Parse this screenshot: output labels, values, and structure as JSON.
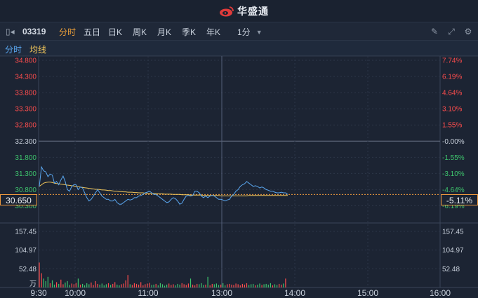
{
  "header": {
    "brand_name": "华盛通",
    "brand_icon": "weibo-style-logo-icon",
    "brand_color": "#e03b3b"
  },
  "toolbar": {
    "stock_code": "03319",
    "tabs": [
      {
        "label": "分时",
        "active": true
      },
      {
        "label": "五日",
        "active": false
      },
      {
        "label": "日K",
        "active": false
      },
      {
        "label": "周K",
        "active": false
      },
      {
        "label": "月K",
        "active": false
      },
      {
        "label": "季K",
        "active": false
      },
      {
        "label": "年K",
        "active": false
      }
    ],
    "interval": "1分",
    "icons": [
      "pencil-icon",
      "fullscreen-icon",
      "settings-icon"
    ]
  },
  "legend": {
    "line": "分时",
    "avg": "均线",
    "line_color": "#5aa7f0",
    "avg_color": "#f1c65a"
  },
  "chart_data": {
    "type": "line",
    "price_axis": {
      "ticks": [
        "34.800",
        "34.300",
        "33.800",
        "33.300",
        "32.800",
        "32.300",
        "31.800",
        "31.300",
        "30.800",
        "30.300"
      ],
      "pct_ticks": [
        "7.74%",
        "6.19%",
        "4.64%",
        "3.10%",
        "1.55%",
        "-0.00%",
        "-1.55%",
        "-3.10%",
        "-4.64%",
        "-6.19%"
      ],
      "ylim": [
        30.05,
        34.8
      ],
      "prev_close": 32.3
    },
    "current": {
      "price": "30.650",
      "pct": "-5.11%"
    },
    "volume_axis": {
      "ticks": [
        "157.45",
        "104.97",
        "52.48"
      ],
      "unit": "万",
      "ymax": 157.45
    },
    "time_ticks": [
      "9:30",
      "10:00",
      "11:00",
      "13:00",
      "14:00",
      "15:00",
      "16:00"
    ],
    "series": [
      {
        "name": "分时",
        "values": [
          30.9,
          31.5,
          31.38,
          31.35,
          31.2,
          31.28,
          31.25,
          31.0,
          31.05,
          30.95,
          31.1,
          31.22,
          31.05,
          30.8,
          30.75,
          30.9,
          30.95,
          30.95,
          30.8,
          30.88,
          30.85,
          30.7,
          30.55,
          30.45,
          30.5,
          30.6,
          30.7,
          30.8,
          30.7,
          30.6,
          30.55,
          30.5,
          30.5,
          30.45,
          30.45,
          30.5,
          30.4,
          30.35,
          30.35,
          30.4,
          30.45,
          30.5,
          30.48,
          30.5,
          30.55,
          30.55,
          30.6,
          30.62,
          30.65,
          30.7,
          30.72,
          30.75,
          30.7,
          30.65,
          30.65,
          30.6,
          30.55,
          30.5,
          30.45,
          30.4,
          30.42,
          30.5,
          30.55,
          30.52,
          30.45,
          30.35,
          30.38,
          30.5,
          30.6,
          30.62,
          30.6,
          30.62,
          30.75,
          30.75,
          30.7,
          30.6,
          30.55,
          30.6,
          30.55,
          30.6,
          30.62,
          30.6,
          30.55,
          30.5,
          30.5,
          30.48,
          30.45,
          30.48,
          30.5,
          30.6,
          30.65,
          30.75,
          30.8,
          30.9,
          30.95,
          30.98,
          31.05,
          31.0,
          30.95,
          30.9,
          30.92,
          30.9,
          30.85,
          30.88,
          30.85,
          30.8,
          30.78,
          30.75,
          30.75,
          30.72,
          30.7,
          30.7,
          30.72,
          30.7,
          30.7,
          30.65
        ]
      },
      {
        "name": "均线",
        "values": [
          30.9,
          30.95,
          31.0,
          31.02,
          31.03,
          31.03,
          31.02,
          31.0,
          30.99,
          30.98,
          30.97,
          30.96,
          30.95,
          30.94,
          30.93,
          30.92,
          30.91,
          30.9,
          30.89,
          30.88,
          30.87,
          30.86,
          30.85,
          30.84,
          30.83,
          30.82,
          30.81,
          30.81,
          30.8,
          30.79,
          30.79,
          30.78,
          30.77,
          30.77,
          30.76,
          30.75,
          30.75,
          30.74,
          30.74,
          30.73,
          30.73,
          30.72,
          30.72,
          30.72,
          30.71,
          30.71,
          30.7,
          30.7,
          30.7,
          30.69,
          30.69,
          30.69,
          30.68,
          30.68,
          30.68,
          30.67,
          30.67,
          30.67,
          30.66,
          30.66,
          30.66,
          30.66,
          30.65,
          30.65,
          30.65,
          30.65,
          30.64,
          30.64,
          30.64,
          30.64,
          30.63,
          30.63,
          30.63,
          30.63,
          30.63,
          30.63,
          30.62,
          30.62,
          30.62,
          30.62,
          30.62,
          30.62,
          30.62,
          30.62,
          30.61,
          30.61,
          30.61,
          30.61,
          30.61,
          30.61,
          30.61,
          30.61,
          30.61,
          30.61,
          30.61,
          30.61,
          30.61,
          30.62,
          30.62,
          30.62,
          30.62,
          30.62,
          30.62,
          30.62,
          30.62,
          30.62,
          30.62,
          30.62,
          30.62,
          30.62,
          30.62,
          30.62,
          30.62,
          30.62,
          30.62,
          30.62
        ]
      }
    ],
    "volume": [
      70,
      40,
      25,
      18,
      30,
      12,
      20,
      8,
      15,
      10,
      22,
      9,
      14,
      18,
      7,
      11,
      9,
      13,
      25,
      8,
      10,
      6,
      12,
      9,
      14,
      7,
      18,
      10,
      8,
      11,
      6,
      9,
      12,
      7,
      10,
      15,
      8,
      6,
      9,
      11,
      20,
      35,
      9,
      7,
      12,
      10,
      8,
      15,
      6,
      9,
      11,
      13,
      7,
      8,
      10,
      6,
      12,
      9,
      5,
      8,
      11,
      7,
      9,
      6,
      10,
      8,
      12,
      9,
      7,
      11,
      25,
      8,
      6,
      10,
      9,
      12,
      7,
      8,
      30,
      6,
      10,
      9,
      11,
      7,
      8,
      12,
      6,
      9,
      10,
      8,
      7,
      11,
      9,
      6,
      10,
      8,
      12,
      7,
      9,
      10,
      6,
      8,
      11,
      7,
      9,
      10,
      8,
      12,
      6,
      9,
      7,
      10,
      8,
      11,
      25
    ]
  }
}
